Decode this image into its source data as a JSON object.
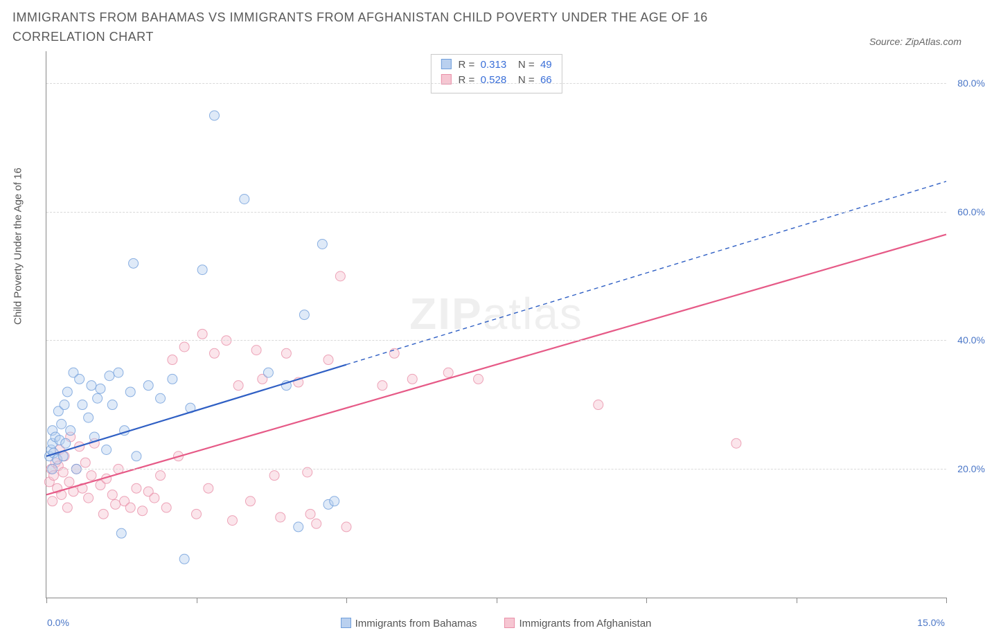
{
  "header": {
    "title": "IMMIGRANTS FROM BAHAMAS VS IMMIGRANTS FROM AFGHANISTAN CHILD POVERTY UNDER THE AGE OF 16 CORRELATION CHART",
    "source_label": "Source: ZipAtlas.com"
  },
  "chart": {
    "type": "scatter",
    "y_axis_title": "Child Poverty Under the Age of 16",
    "xlim": [
      0,
      15
    ],
    "ylim": [
      0,
      85
    ],
    "x_tick_step": 2.5,
    "y_ticks": [
      20,
      40,
      60,
      80
    ],
    "y_tick_labels": [
      "20.0%",
      "40.0%",
      "60.0%",
      "80.0%"
    ],
    "x_min_label": "0.0%",
    "x_max_label": "15.0%",
    "grid_color": "#d9d9d9",
    "axis_color": "#888888",
    "background_color": "#ffffff",
    "tick_label_color": "#4a76c7",
    "marker_radius": 7,
    "marker_opacity": 0.45,
    "trend_solid_xmax_a": 5.0,
    "trend_solid_xmax_b": 15.0,
    "line_width_solid": 2.2,
    "line_width_dash": 1.4,
    "dash_pattern": "6,5"
  },
  "series": {
    "a": {
      "label": "Immigrants from Bahamas",
      "color_fill": "#b9d0ef",
      "color_stroke": "#6f9edb",
      "line_color": "#2f5fc4",
      "R": "0.313",
      "N": "49",
      "trend": {
        "intercept": 22.0,
        "slope": 2.85
      },
      "points": [
        [
          0.05,
          22
        ],
        [
          0.08,
          23
        ],
        [
          0.1,
          20
        ],
        [
          0.1,
          24
        ],
        [
          0.1,
          26
        ],
        [
          0.12,
          22.5
        ],
        [
          0.15,
          25
        ],
        [
          0.18,
          21.5
        ],
        [
          0.2,
          29
        ],
        [
          0.22,
          24.5
        ],
        [
          0.25,
          27
        ],
        [
          0.28,
          22
        ],
        [
          0.3,
          30
        ],
        [
          0.32,
          24
        ],
        [
          0.35,
          32
        ],
        [
          0.4,
          26
        ],
        [
          0.45,
          35
        ],
        [
          0.5,
          20
        ],
        [
          0.55,
          34
        ],
        [
          0.6,
          30
        ],
        [
          0.7,
          28
        ],
        [
          0.75,
          33
        ],
        [
          0.8,
          25
        ],
        [
          0.85,
          31
        ],
        [
          0.9,
          32.5
        ],
        [
          1.0,
          23
        ],
        [
          1.05,
          34.5
        ],
        [
          1.1,
          30
        ],
        [
          1.2,
          35
        ],
        [
          1.25,
          10
        ],
        [
          1.3,
          26
        ],
        [
          1.4,
          32
        ],
        [
          1.45,
          52
        ],
        [
          1.5,
          22
        ],
        [
          1.7,
          33
        ],
        [
          1.9,
          31
        ],
        [
          2.1,
          34
        ],
        [
          2.3,
          6
        ],
        [
          2.4,
          29.5
        ],
        [
          2.6,
          51
        ],
        [
          2.8,
          75
        ],
        [
          3.3,
          62
        ],
        [
          3.7,
          35
        ],
        [
          4.0,
          33
        ],
        [
          4.2,
          11
        ],
        [
          4.3,
          44
        ],
        [
          4.6,
          55
        ],
        [
          4.7,
          14.5
        ],
        [
          4.8,
          15
        ]
      ]
    },
    "b": {
      "label": "Immigrants from Afghanistan",
      "color_fill": "#f6c6d2",
      "color_stroke": "#e98fa8",
      "line_color": "#e65a87",
      "R": "0.528",
      "N": "66",
      "trend": {
        "intercept": 16.0,
        "slope": 2.7
      },
      "points": [
        [
          0.05,
          18
        ],
        [
          0.08,
          20
        ],
        [
          0.1,
          15
        ],
        [
          0.12,
          19
        ],
        [
          0.15,
          21
        ],
        [
          0.18,
          17
        ],
        [
          0.2,
          20.5
        ],
        [
          0.22,
          23
        ],
        [
          0.25,
          16
        ],
        [
          0.28,
          19.5
        ],
        [
          0.3,
          22
        ],
        [
          0.35,
          14
        ],
        [
          0.38,
          18
        ],
        [
          0.4,
          25
        ],
        [
          0.45,
          16.5
        ],
        [
          0.5,
          20
        ],
        [
          0.55,
          23.5
        ],
        [
          0.6,
          17
        ],
        [
          0.65,
          21
        ],
        [
          0.7,
          15.5
        ],
        [
          0.75,
          19
        ],
        [
          0.8,
          24
        ],
        [
          0.9,
          17.5
        ],
        [
          0.95,
          13
        ],
        [
          1.0,
          18.5
        ],
        [
          1.1,
          16
        ],
        [
          1.15,
          14.5
        ],
        [
          1.2,
          20
        ],
        [
          1.3,
          15
        ],
        [
          1.4,
          14
        ],
        [
          1.5,
          17
        ],
        [
          1.6,
          13.5
        ],
        [
          1.7,
          16.5
        ],
        [
          1.8,
          15.5
        ],
        [
          1.9,
          19
        ],
        [
          2.0,
          14
        ],
        [
          2.1,
          37
        ],
        [
          2.2,
          22
        ],
        [
          2.3,
          39
        ],
        [
          2.5,
          13
        ],
        [
          2.6,
          41
        ],
        [
          2.7,
          17
        ],
        [
          2.8,
          38
        ],
        [
          3.0,
          40
        ],
        [
          3.1,
          12
        ],
        [
          3.2,
          33
        ],
        [
          3.4,
          15
        ],
        [
          3.5,
          38.5
        ],
        [
          3.6,
          34
        ],
        [
          3.8,
          19
        ],
        [
          3.9,
          12.5
        ],
        [
          4.0,
          38
        ],
        [
          4.2,
          33.5
        ],
        [
          4.4,
          13
        ],
        [
          4.5,
          11.5
        ],
        [
          4.7,
          37
        ],
        [
          4.9,
          50
        ],
        [
          5.0,
          11
        ],
        [
          5.6,
          33
        ],
        [
          5.8,
          38
        ],
        [
          6.1,
          34
        ],
        [
          6.7,
          35
        ],
        [
          7.2,
          34
        ],
        [
          9.2,
          30
        ],
        [
          11.5,
          24
        ],
        [
          4.35,
          19.5
        ]
      ]
    }
  },
  "stats_box": {
    "r_label": "R =",
    "n_label": "N ="
  },
  "bottom_legend": {
    "a": "Immigrants from Bahamas",
    "b": "Immigrants from Afghanistan"
  },
  "watermark": {
    "bold": "ZIP",
    "light": "atlas"
  }
}
